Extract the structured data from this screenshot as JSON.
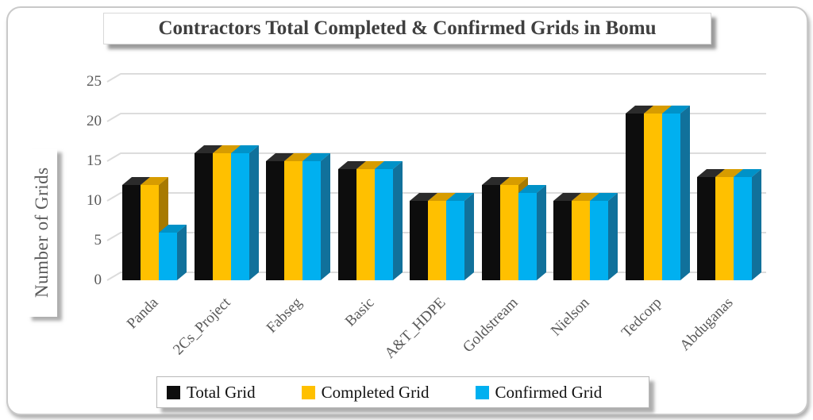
{
  "header": {
    "title": "Contractors Total Completed & Confirmed Grids in Bomu"
  },
  "chart_data": {
    "type": "bar",
    "variant": "3d-clustered-column",
    "title": "Contractors Total Completed & Confirmed Grids in Bomu",
    "xlabel": "",
    "ylabel": "Number of Grids",
    "categories": [
      "Panda",
      "2Cs_Project",
      "Fabseg",
      "Basic",
      "A&T_HDPE",
      "Goldstream",
      "Nielson",
      "Tedcorp",
      "Abduganas"
    ],
    "series": [
      {
        "name": "Total Grid",
        "color": "#0D0D0D",
        "color_top": "#2B2B2B",
        "color_side": "#1A1A1A",
        "values": [
          12,
          16,
          15,
          14,
          10,
          12,
          10,
          21,
          13
        ]
      },
      {
        "name": "Completed Grid",
        "color": "#FFC000",
        "color_top": "#D79C00",
        "color_side": "#A87A00",
        "values": [
          12,
          16,
          15,
          14,
          10,
          12,
          10,
          21,
          13
        ]
      },
      {
        "name": "Confirmed Grid",
        "color": "#00B0F0",
        "color_top": "#0092C8",
        "color_side": "#11719B",
        "values": [
          6,
          16,
          15,
          14,
          10,
          11,
          10,
          21,
          13
        ]
      }
    ],
    "y_ticks": [
      0,
      5,
      10,
      15,
      20,
      25
    ],
    "ylim": [
      0,
      25
    ],
    "grid": true,
    "legend_position": "bottom",
    "gridline_color": "#DCDCDC",
    "axis_text_color": "#595959"
  }
}
